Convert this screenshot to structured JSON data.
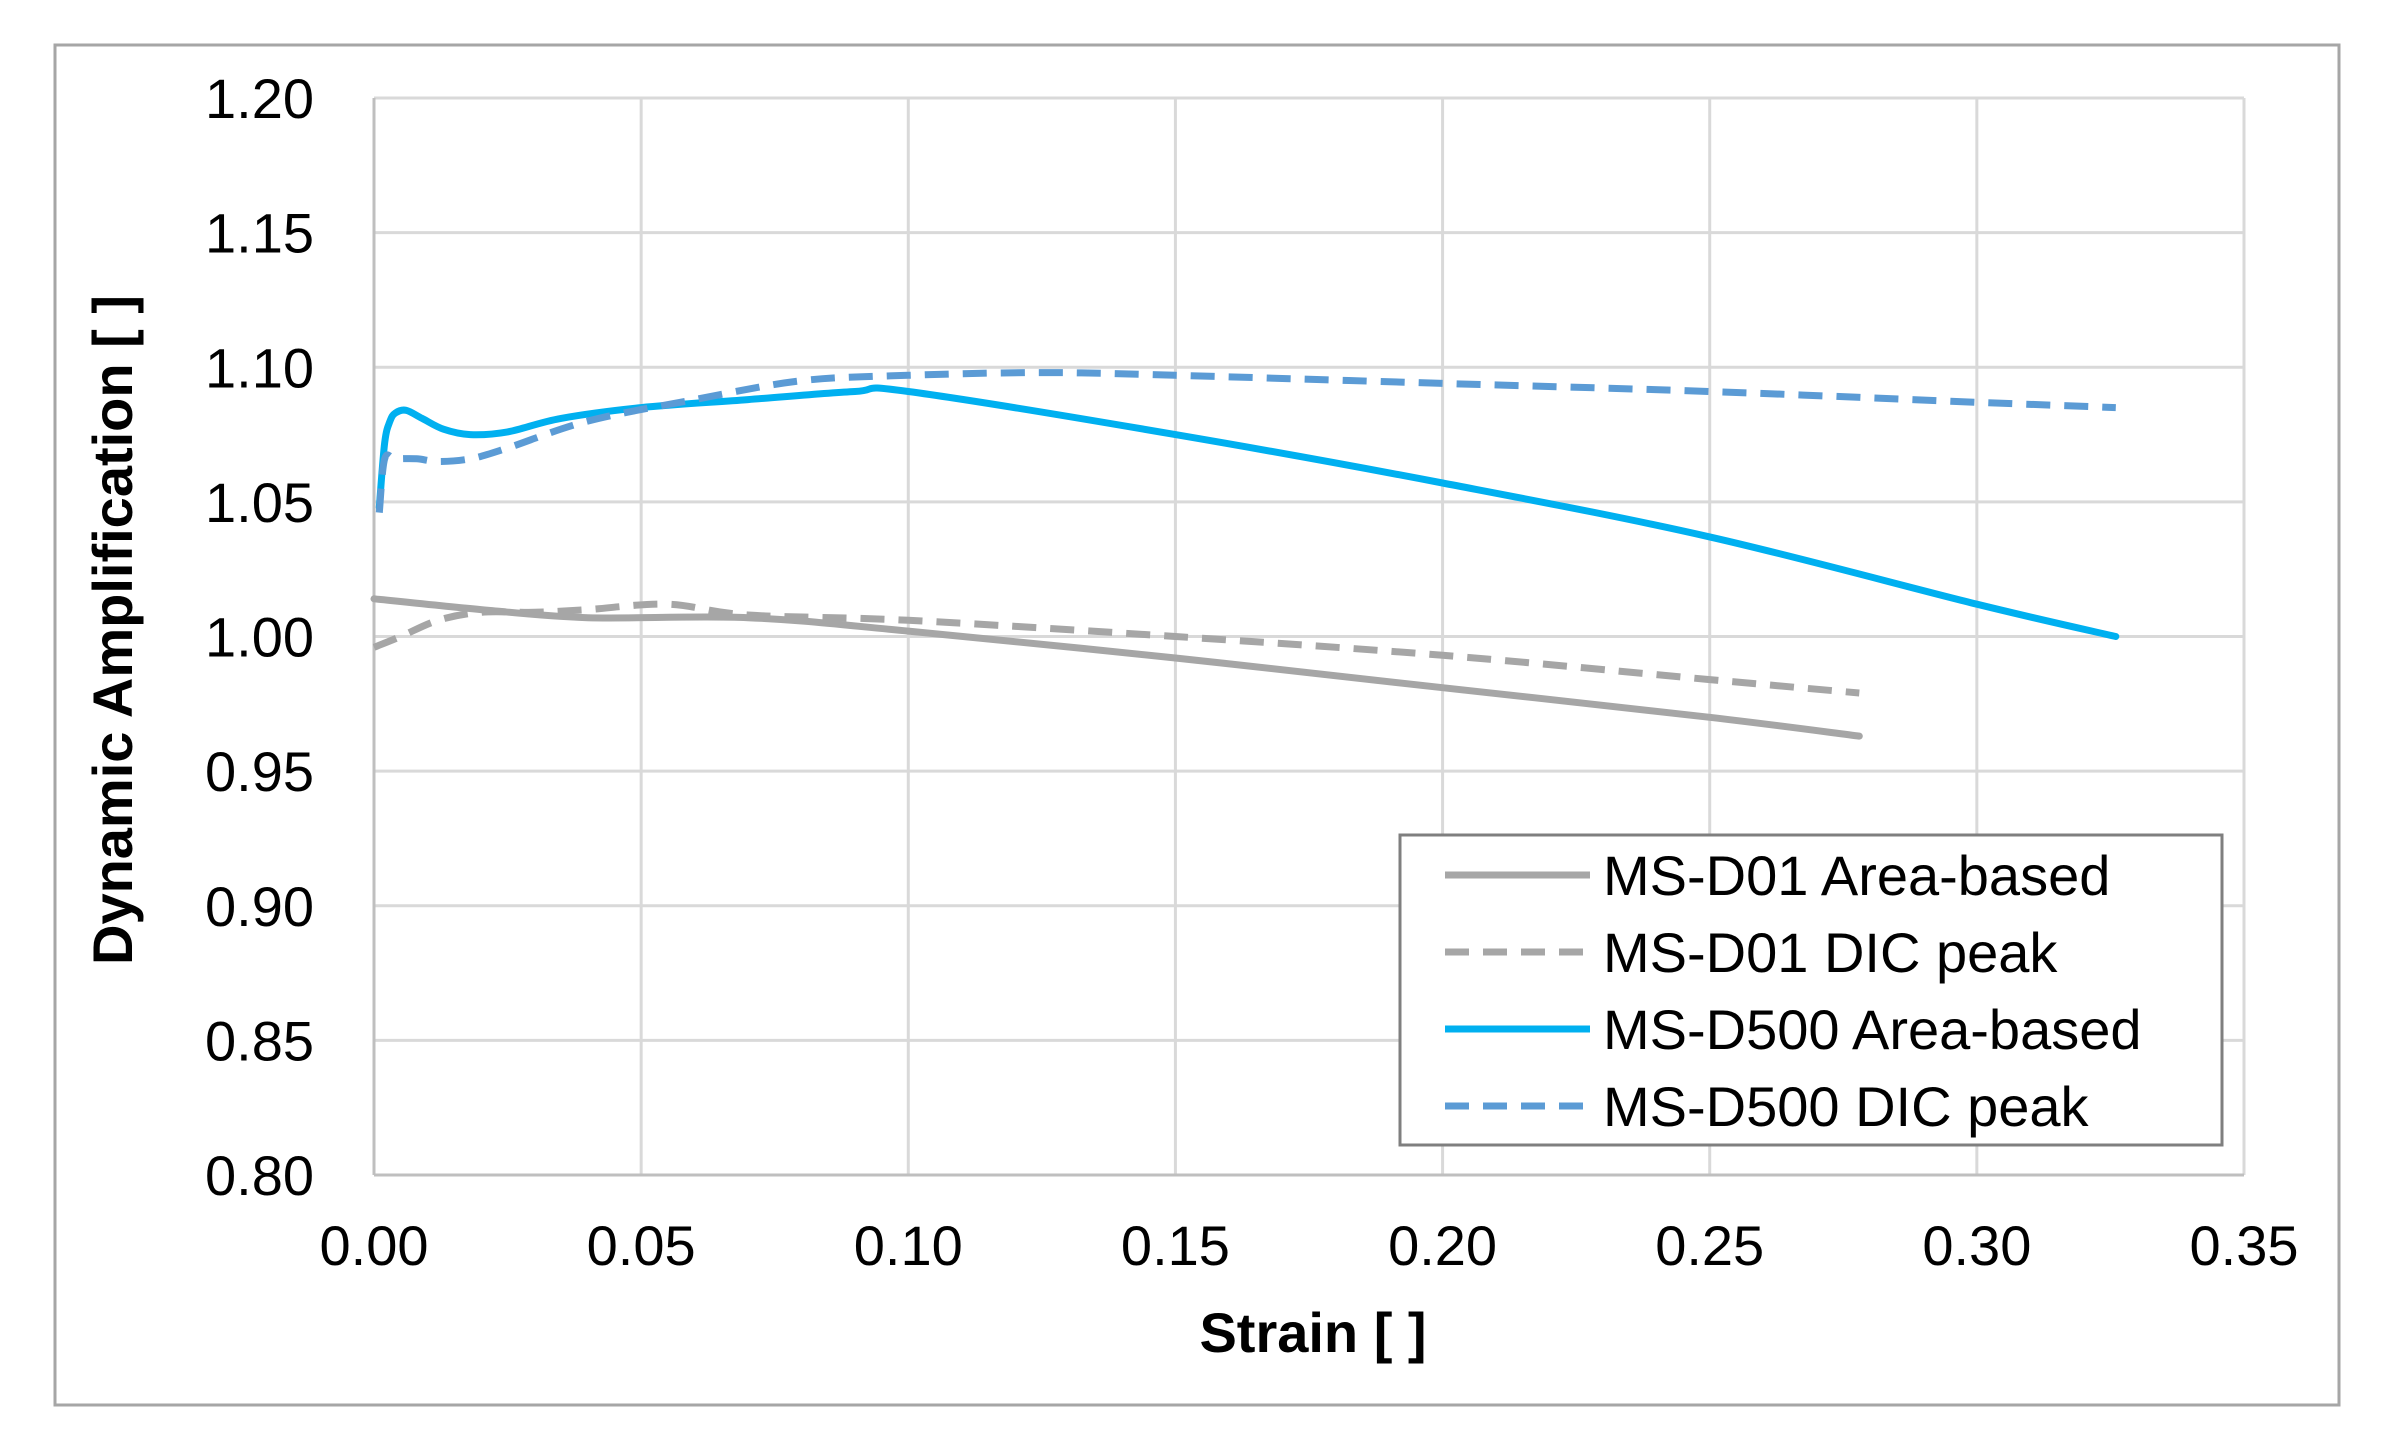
{
  "chart_data": {
    "type": "line",
    "title": "",
    "xlabel": "Strain [ ]",
    "ylabel": "Dynamic Amplification [ ]",
    "xlim": [
      0,
      0.35
    ],
    "ylim": [
      0.8,
      1.2
    ],
    "x_ticks": [
      0,
      0.05,
      0.1,
      0.15,
      0.2,
      0.25,
      0.3,
      0.35
    ],
    "x_tick_labels": [
      "0.00",
      "0.05",
      "0.10",
      "0.15",
      "0.20",
      "0.25",
      "0.30",
      "0.35"
    ],
    "y_ticks": [
      0.8,
      0.85,
      0.9,
      0.95,
      1.0,
      1.05,
      1.1,
      1.15,
      1.2
    ],
    "y_tick_labels": [
      "0.80",
      "0.85",
      "0.90",
      "0.95",
      "1.00",
      "1.05",
      "1.10",
      "1.15",
      "1.20"
    ],
    "grid": true,
    "legend_position": "bottom-right",
    "series": [
      {
        "name": "MS-D01 Area-based",
        "color": "#A6A6A6",
        "style": "solid",
        "x": [
          0.0,
          0.02,
          0.04,
          0.07,
          0.1,
          0.15,
          0.2,
          0.25,
          0.278
        ],
        "y": [
          1.014,
          1.01,
          1.007,
          1.007,
          1.002,
          0.992,
          0.981,
          0.97,
          0.963
        ]
      },
      {
        "name": "MS-D01 DIC peak",
        "color": "#A6A6A6",
        "style": "dashed",
        "x": [
          0.0,
          0.005,
          0.012,
          0.02,
          0.03,
          0.04,
          0.055,
          0.07,
          0.1,
          0.15,
          0.2,
          0.25,
          0.278
        ],
        "y": [
          0.996,
          1.0,
          1.006,
          1.009,
          1.009,
          1.01,
          1.012,
          1.008,
          1.006,
          1.0,
          0.993,
          0.984,
          0.979
        ]
      },
      {
        "name": "MS-D500 Area-based",
        "color": "#00B0F0",
        "style": "solid",
        "x": [
          0.001,
          0.002,
          0.003,
          0.004,
          0.006,
          0.009,
          0.013,
          0.018,
          0.025,
          0.035,
          0.05,
          0.07,
          0.09,
          0.1,
          0.15,
          0.2,
          0.25,
          0.3,
          0.326
        ],
        "y": [
          1.048,
          1.072,
          1.08,
          1.083,
          1.084,
          1.081,
          1.077,
          1.075,
          1.076,
          1.081,
          1.085,
          1.088,
          1.091,
          1.091,
          1.075,
          1.057,
          1.037,
          1.012,
          1.0
        ]
      },
      {
        "name": "MS-D500 DIC peak",
        "color": "#5B9BD5",
        "style": "dashed",
        "x": [
          0.001,
          0.002,
          0.004,
          0.008,
          0.012,
          0.018,
          0.025,
          0.04,
          0.06,
          0.08,
          0.1,
          0.125,
          0.15,
          0.2,
          0.25,
          0.3,
          0.326
        ],
        "y": [
          1.046,
          1.066,
          1.066,
          1.066,
          1.065,
          1.066,
          1.07,
          1.08,
          1.088,
          1.095,
          1.097,
          1.098,
          1.097,
          1.094,
          1.091,
          1.087,
          1.085
        ]
      }
    ]
  }
}
